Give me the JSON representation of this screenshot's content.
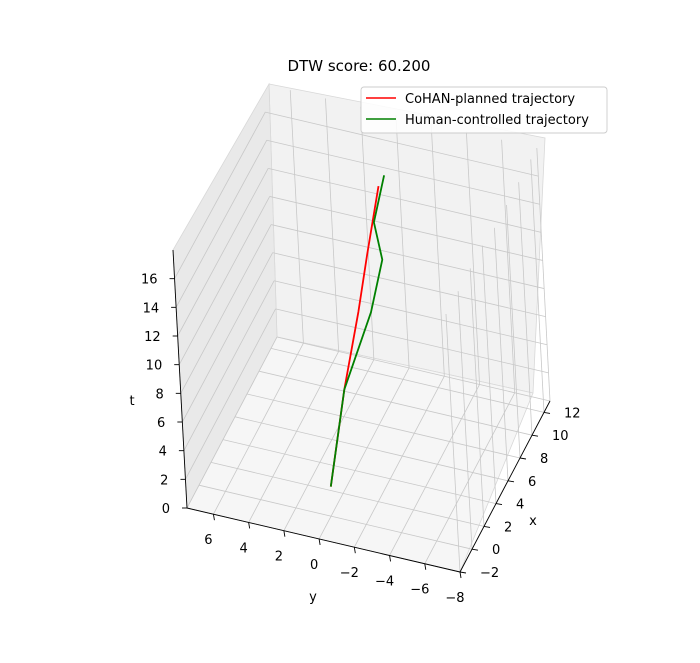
{
  "chart_data": {
    "type": "line3d",
    "title": "DTW score: 60.200",
    "xlabel": "x",
    "ylabel": "y",
    "zlabel": "t",
    "xlim": [
      -2,
      13
    ],
    "ylim": [
      -8,
      7.5
    ],
    "zlim": [
      0,
      18
    ],
    "x_ticks": [
      "−2",
      "0",
      "2",
      "4",
      "6",
      "8",
      "10",
      "12"
    ],
    "y_ticks": [
      "6",
      "4",
      "2",
      "0",
      "−2",
      "−4",
      "−6",
      "−8"
    ],
    "z_ticks": [
      "0",
      "2",
      "4",
      "6",
      "8",
      "10",
      "12",
      "14",
      "16"
    ],
    "legend": {
      "position": "top-right"
    },
    "grid": true,
    "series": [
      {
        "name": "CoHAN-planned trajectory",
        "color": "#ff0000",
        "points": [
          {
            "x": 2.3,
            "y": 0.8,
            "t": 0
          },
          {
            "x": 4.6,
            "y": 0.6,
            "t": 5
          },
          {
            "x": 6.7,
            "y": 0.35,
            "t": 9
          },
          {
            "x": 8.1,
            "y": 0.2,
            "t": 12
          },
          {
            "x": 9.3,
            "y": -0.2,
            "t": 16
          }
        ]
      },
      {
        "name": "Human-controlled trajectory",
        "color": "#008000",
        "points": [
          {
            "x": 2.3,
            "y": 0.8,
            "t": 0
          },
          {
            "x": 4.6,
            "y": 0.6,
            "t": 5
          },
          {
            "x": 6.9,
            "y": -0.3,
            "t": 9
          },
          {
            "x": 8.5,
            "y": -0.5,
            "t": 11.5
          },
          {
            "x": 9.1,
            "y": 0.1,
            "t": 13.5
          },
          {
            "x": 9.7,
            "y": -0.4,
            "t": 16.5
          }
        ]
      }
    ]
  }
}
